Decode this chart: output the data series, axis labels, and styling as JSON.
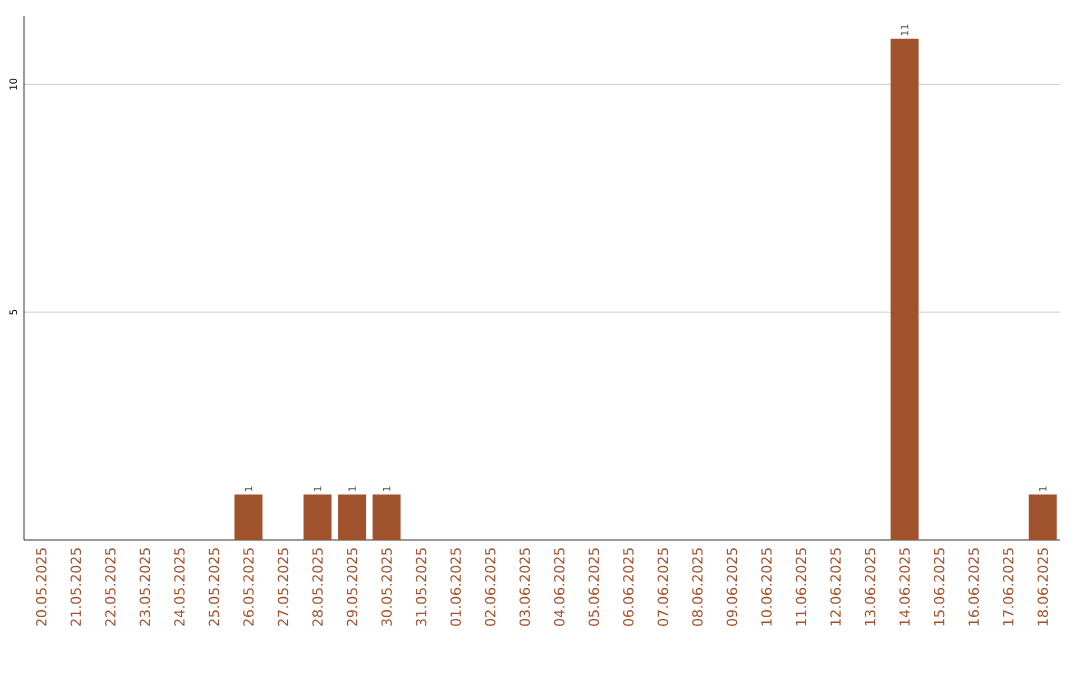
{
  "chart_data": {
    "type": "bar",
    "categories": [
      "20.05.2025",
      "21.05.2025",
      "22.05.2025",
      "23.05.2025",
      "24.05.2025",
      "25.05.2025",
      "26.05.2025",
      "27.05.2025",
      "28.05.2025",
      "29.05.2025",
      "30.05.2025",
      "31.05.2025",
      "01.06.2025",
      "02.06.2025",
      "03.06.2025",
      "04.06.2025",
      "05.06.2025",
      "06.06.2025",
      "07.06.2025",
      "08.06.2025",
      "09.06.2025",
      "10.06.2025",
      "11.06.2025",
      "12.06.2025",
      "13.06.2025",
      "14.06.2025",
      "15.06.2025",
      "16.06.2025",
      "17.06.2025",
      "18.06.2025"
    ],
    "values": [
      0,
      0,
      0,
      0,
      0,
      0,
      1,
      0,
      1,
      1,
      1,
      0,
      0,
      0,
      0,
      0,
      0,
      0,
      0,
      0,
      0,
      0,
      0,
      0,
      0,
      11,
      0,
      0,
      0,
      1
    ],
    "value_labels": [
      null,
      null,
      null,
      null,
      null,
      null,
      "1",
      null,
      "1",
      "1",
      "1",
      null,
      null,
      null,
      null,
      null,
      null,
      null,
      null,
      null,
      null,
      null,
      null,
      null,
      null,
      "11",
      null,
      null,
      null,
      "1"
    ],
    "color": "#a0522d",
    "ylim": [
      0,
      11.5
    ],
    "yticks": [
      5,
      10
    ],
    "grid": "y"
  }
}
